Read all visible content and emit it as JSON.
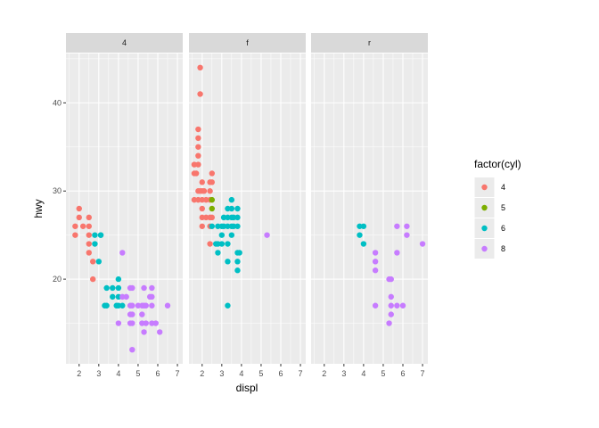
{
  "chart_data": {
    "type": "scatter",
    "title": "",
    "xlabel": "displ",
    "ylabel": "hwy",
    "xlim": [
      1.33,
      7.27
    ],
    "ylim": [
      10.4,
      45.6
    ],
    "x_ticks": [
      2,
      3,
      4,
      5,
      6,
      7
    ],
    "y_ticks": [
      20,
      30,
      40
    ],
    "grid": true,
    "facet_by": "drv",
    "facets": [
      "4",
      "f",
      "r"
    ],
    "legend": {
      "title": "factor(cyl)",
      "placement": "right",
      "entries": [
        {
          "label": "4",
          "color": "#F8766D"
        },
        {
          "label": "5",
          "color": "#7CAE00"
        },
        {
          "label": "6",
          "color": "#00BFC4"
        },
        {
          "label": "8",
          "color": "#C77CFF"
        }
      ]
    },
    "points": {
      "4": [
        [
          1.8,
          26,
          "4"
        ],
        [
          1.8,
          25,
          "4"
        ],
        [
          2.0,
          28,
          "4"
        ],
        [
          2.0,
          27,
          "4"
        ],
        [
          2.2,
          26,
          "4"
        ],
        [
          2.5,
          27,
          "4"
        ],
        [
          2.5,
          26,
          "4"
        ],
        [
          2.5,
          25,
          "4"
        ],
        [
          2.5,
          24,
          "4"
        ],
        [
          2.5,
          23,
          "4"
        ],
        [
          2.7,
          22,
          "4"
        ],
        [
          2.7,
          20,
          "4"
        ],
        [
          2.8,
          25,
          "6"
        ],
        [
          3.1,
          25,
          "6"
        ],
        [
          2.8,
          24,
          "6"
        ],
        [
          3.0,
          22,
          "6"
        ],
        [
          3.1,
          25,
          "6"
        ],
        [
          4.2,
          23,
          "8"
        ],
        [
          4.0,
          20,
          "6"
        ],
        [
          3.4,
          19,
          "6"
        ],
        [
          3.7,
          19,
          "6"
        ],
        [
          4.0,
          19,
          "6"
        ],
        [
          3.7,
          18,
          "6"
        ],
        [
          4.0,
          18,
          "6"
        ],
        [
          3.3,
          17,
          "6"
        ],
        [
          3.4,
          17,
          "6"
        ],
        [
          3.9,
          17,
          "6"
        ],
        [
          4.0,
          17,
          "6"
        ],
        [
          4.2,
          17,
          "6"
        ],
        [
          4.7,
          19,
          "8"
        ],
        [
          4.6,
          19,
          "8"
        ],
        [
          5.3,
          19,
          "8"
        ],
        [
          5.7,
          19,
          "8"
        ],
        [
          4.2,
          18,
          "8"
        ],
        [
          4.4,
          18,
          "8"
        ],
        [
          5.6,
          18,
          "8"
        ],
        [
          5.7,
          18,
          "8"
        ],
        [
          4.6,
          17,
          "8"
        ],
        [
          4.7,
          17,
          "8"
        ],
        [
          5.0,
          17,
          "8"
        ],
        [
          5.2,
          17,
          "8"
        ],
        [
          5.3,
          17,
          "8"
        ],
        [
          5.4,
          17,
          "8"
        ],
        [
          5.7,
          17,
          "8"
        ],
        [
          6.5,
          17,
          "8"
        ],
        [
          4.6,
          16,
          "8"
        ],
        [
          4.7,
          16,
          "8"
        ],
        [
          5.2,
          16,
          "8"
        ],
        [
          4.0,
          15,
          "8"
        ],
        [
          4.6,
          15,
          "8"
        ],
        [
          4.7,
          15,
          "8"
        ],
        [
          5.2,
          15,
          "8"
        ],
        [
          5.4,
          15,
          "8"
        ],
        [
          5.7,
          15,
          "8"
        ],
        [
          5.9,
          15,
          "8"
        ],
        [
          5.3,
          14,
          "8"
        ],
        [
          6.1,
          14,
          "8"
        ],
        [
          4.7,
          12,
          "8"
        ]
      ],
      "f": [
        [
          1.9,
          44,
          "4"
        ],
        [
          1.9,
          41,
          "4"
        ],
        [
          1.8,
          37,
          "4"
        ],
        [
          1.8,
          36,
          "4"
        ],
        [
          1.8,
          35,
          "4"
        ],
        [
          1.8,
          34,
          "4"
        ],
        [
          1.6,
          33,
          "4"
        ],
        [
          1.8,
          33,
          "4"
        ],
        [
          1.6,
          32,
          "4"
        ],
        [
          1.7,
          32,
          "4"
        ],
        [
          2.5,
          32,
          "4"
        ],
        [
          2.0,
          31,
          "4"
        ],
        [
          2.4,
          31,
          "4"
        ],
        [
          2.5,
          31,
          "4"
        ],
        [
          1.8,
          30,
          "4"
        ],
        [
          1.9,
          30,
          "4"
        ],
        [
          2.0,
          30,
          "4"
        ],
        [
          2.1,
          30,
          "4"
        ],
        [
          2.4,
          30,
          "4"
        ],
        [
          1.6,
          29,
          "4"
        ],
        [
          1.8,
          29,
          "4"
        ],
        [
          2.0,
          29,
          "4"
        ],
        [
          2.2,
          29,
          "4"
        ],
        [
          2.4,
          29,
          "4"
        ],
        [
          2.5,
          29,
          "5"
        ],
        [
          2.0,
          28,
          "4"
        ],
        [
          2.5,
          28,
          "5"
        ],
        [
          2.0,
          27,
          "4"
        ],
        [
          2.2,
          27,
          "4"
        ],
        [
          2.4,
          27,
          "4"
        ],
        [
          2.5,
          27,
          "4"
        ],
        [
          2.0,
          26,
          "4"
        ],
        [
          2.4,
          26,
          "4"
        ],
        [
          2.4,
          24,
          "4"
        ],
        [
          3.5,
          29,
          "6"
        ],
        [
          3.3,
          28,
          "6"
        ],
        [
          3.5,
          28,
          "6"
        ],
        [
          3.8,
          28,
          "6"
        ],
        [
          3.1,
          27,
          "6"
        ],
        [
          3.3,
          27,
          "6"
        ],
        [
          3.5,
          27,
          "6"
        ],
        [
          3.6,
          27,
          "6"
        ],
        [
          3.8,
          27,
          "6"
        ],
        [
          2.5,
          26,
          "6"
        ],
        [
          2.8,
          26,
          "6"
        ],
        [
          3.0,
          26,
          "6"
        ],
        [
          3.1,
          26,
          "6"
        ],
        [
          3.3,
          26,
          "6"
        ],
        [
          3.5,
          26,
          "6"
        ],
        [
          3.6,
          26,
          "6"
        ],
        [
          3.8,
          26,
          "6"
        ],
        [
          3.0,
          25,
          "6"
        ],
        [
          3.5,
          25,
          "6"
        ],
        [
          2.7,
          24,
          "6"
        ],
        [
          2.8,
          24,
          "6"
        ],
        [
          3.0,
          24,
          "6"
        ],
        [
          3.3,
          24,
          "6"
        ],
        [
          2.8,
          23,
          "6"
        ],
        [
          3.8,
          23,
          "6"
        ],
        [
          3.9,
          23,
          "6"
        ],
        [
          3.3,
          22,
          "6"
        ],
        [
          3.8,
          22,
          "6"
        ],
        [
          3.8,
          21,
          "6"
        ],
        [
          3.3,
          17,
          "6"
        ],
        [
          5.3,
          25,
          "8"
        ]
      ],
      "r": [
        [
          3.8,
          26,
          "6"
        ],
        [
          4.0,
          26,
          "6"
        ],
        [
          3.8,
          25,
          "6"
        ],
        [
          4.0,
          24,
          "6"
        ],
        [
          5.7,
          26,
          "8"
        ],
        [
          6.2,
          26,
          "8"
        ],
        [
          6.2,
          25,
          "8"
        ],
        [
          7.0,
          24,
          "8"
        ],
        [
          5.7,
          23,
          "8"
        ],
        [
          4.6,
          23,
          "8"
        ],
        [
          4.6,
          22,
          "8"
        ],
        [
          4.6,
          21,
          "8"
        ],
        [
          5.3,
          20,
          "8"
        ],
        [
          5.4,
          20,
          "8"
        ],
        [
          5.4,
          18,
          "8"
        ],
        [
          4.6,
          17,
          "8"
        ],
        [
          5.4,
          17,
          "8"
        ],
        [
          5.7,
          17,
          "8"
        ],
        [
          6.0,
          17,
          "8"
        ],
        [
          5.4,
          16,
          "8"
        ],
        [
          5.3,
          15,
          "8"
        ]
      ]
    }
  }
}
